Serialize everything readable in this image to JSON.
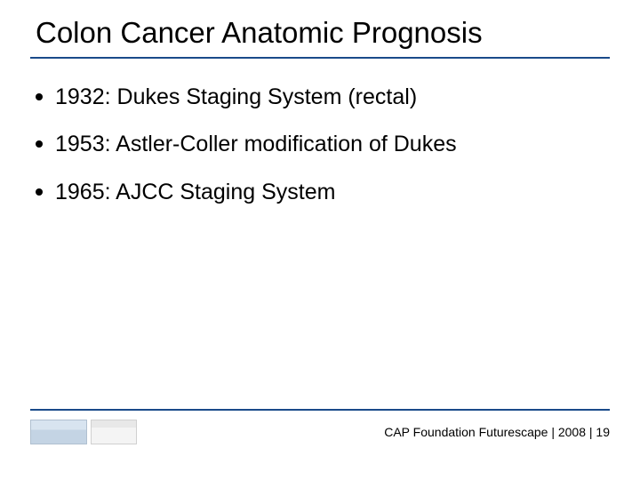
{
  "title": "Colon Cancer Anatomic Prognosis",
  "bullets": [
    {
      "year": "1932:",
      "text": "Dukes Staging System (rectal)"
    },
    {
      "year": "1953:",
      "text": "Astler-Coller modification of Dukes"
    },
    {
      "year": "1965:",
      "text": "AJCC Staging System"
    }
  ],
  "footer": {
    "org": "CAP Foundation Futurescape",
    "year": "2008",
    "page": "19"
  },
  "colors": {
    "underline": "#1a4a8a",
    "text": "#000000",
    "background": "#ffffff"
  },
  "typography": {
    "title_fontsize": 33,
    "bullet_fontsize": 25,
    "footer_fontsize": 14
  }
}
